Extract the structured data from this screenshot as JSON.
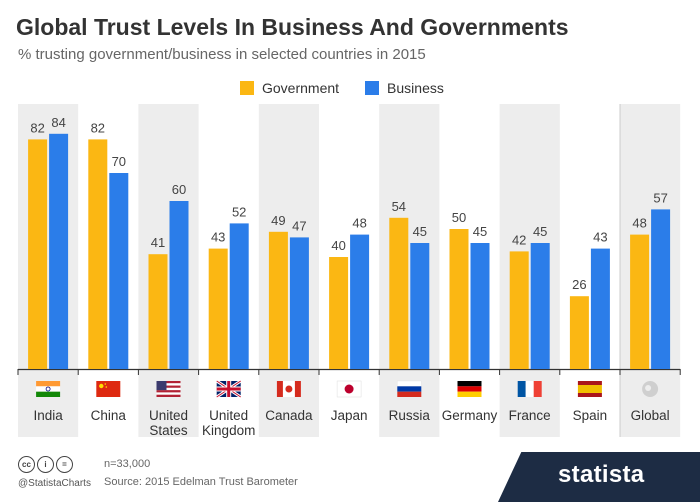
{
  "title": "Global Trust Levels In Business And Governments",
  "subtitle": "% trusting government/business in selected countries in 2015",
  "footer": {
    "handle": "@StatistaCharts",
    "n_note": "n=33,000",
    "source": "Source: 2015 Edelman Trust Barometer",
    "brand": "statista"
  },
  "colors": {
    "government": "#fbb713",
    "business": "#2b7de9",
    "band": "#ededed"
  },
  "chart_data": {
    "type": "bar",
    "title": "Global Trust Levels In Business And Governments",
    "subtitle": "% trusting government/business in selected countries in 2015",
    "categories": [
      {
        "lines": [
          "India"
        ],
        "flag": "india-flag-icon"
      },
      {
        "lines": [
          "China"
        ],
        "flag": "china-flag-icon"
      },
      {
        "lines": [
          "United",
          "States"
        ],
        "flag": "usa-flag-icon"
      },
      {
        "lines": [
          "United",
          "Kingdom"
        ],
        "flag": "uk-flag-icon"
      },
      {
        "lines": [
          "Canada"
        ],
        "flag": "canada-flag-icon"
      },
      {
        "lines": [
          "Japan"
        ],
        "flag": "japan-flag-icon"
      },
      {
        "lines": [
          "Russia"
        ],
        "flag": "russia-flag-icon"
      },
      {
        "lines": [
          "Germany"
        ],
        "flag": "germany-flag-icon"
      },
      {
        "lines": [
          "France"
        ],
        "flag": "france-flag-icon"
      },
      {
        "lines": [
          "Spain"
        ],
        "flag": "spain-flag-icon"
      },
      {
        "lines": [
          "Global"
        ],
        "flag": "globe-icon"
      }
    ],
    "series": [
      {
        "name": "Government",
        "values": [
          82,
          82,
          41,
          43,
          49,
          40,
          54,
          50,
          42,
          26,
          48
        ]
      },
      {
        "name": "Business",
        "values": [
          84,
          70,
          60,
          52,
          47,
          48,
          45,
          45,
          45,
          43,
          57
        ]
      }
    ],
    "ylim": [
      0,
      100
    ],
    "legend": "top-center",
    "grid": false
  }
}
